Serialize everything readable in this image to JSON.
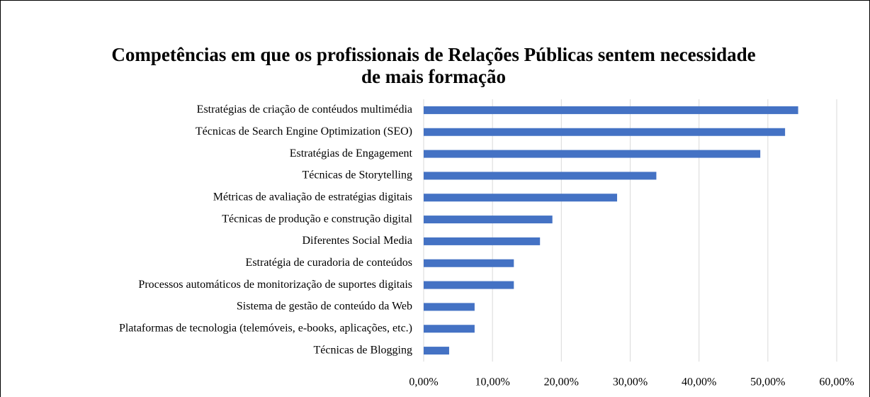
{
  "chart_data": {
    "type": "hbar",
    "title": "Competências em que os profissionais de Relações Públicas sentem necessidade de mais formação",
    "categories": [
      "Estratégias de criação de contéudos multimédia",
      "Técnicas de Search Engine Optimization (SEO)",
      "Estratégias de Engagement",
      "Técnicas de Storytelling",
      "Métricas de avaliação de estratégias digitais",
      "Técnicas de produção e construção digital",
      "Diferentes Social Media",
      "Estratégia de curadoria de conteúdos",
      "Processos automáticos de monitorização de suportes digitais",
      "Sistema de gestão de conteúdo da Web",
      "Plataformas de tecnologia (telemóveis, e-books, aplicações, etc.)",
      "Técnicas de Blogging"
    ],
    "values": [
      54.4,
      52.5,
      48.9,
      33.8,
      28.1,
      18.7,
      16.9,
      13.1,
      13.1,
      7.4,
      7.4,
      3.7
    ],
    "color": "#4472c4",
    "xlim": [
      0,
      60
    ],
    "xticks": [
      {
        "value": 0,
        "label": "0,00%"
      },
      {
        "value": 10,
        "label": "10,00%"
      },
      {
        "value": 20,
        "label": "20,00%"
      },
      {
        "value": 30,
        "label": "30,00%"
      },
      {
        "value": 40,
        "label": "40,00%"
      },
      {
        "value": 50,
        "label": "50,00%"
      },
      {
        "value": 60,
        "label": "60,00%"
      }
    ],
    "grid": true
  }
}
